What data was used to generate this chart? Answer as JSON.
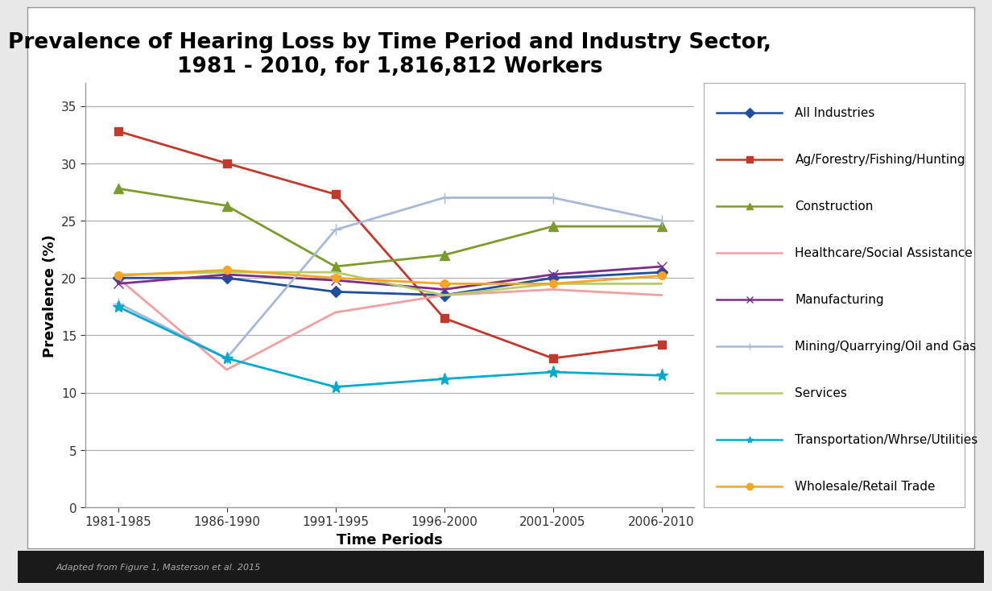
{
  "title": "Prevalence of Hearing Loss by Time Period and Industry Sector,\n1981 - 2010, for 1,816,812 Workers",
  "xlabel": "Time Periods",
  "ylabel": "Prevalence (%)",
  "time_periods": [
    "1981-1985",
    "1986-1990",
    "1991-1995",
    "1996-2000",
    "2001-2005",
    "2006-2010"
  ],
  "series": {
    "All Industries": {
      "values": [
        20.0,
        20.0,
        18.8,
        18.5,
        20.0,
        20.5
      ],
      "color": "#1F4E9B",
      "marker": "D",
      "markersize": 7,
      "linewidth": 2.0
    },
    "Ag/Forestry/Fishing/Hunting": {
      "values": [
        32.8,
        30.0,
        27.3,
        16.5,
        13.0,
        14.2
      ],
      "color": "#C0392B",
      "marker": "s",
      "markersize": 7,
      "linewidth": 2.0
    },
    "Construction": {
      "values": [
        27.8,
        26.3,
        21.0,
        22.0,
        24.5,
        24.5
      ],
      "color": "#7D9B2B",
      "marker": "^",
      "markersize": 8,
      "linewidth": 2.0
    },
    "Healthcare/Social Assistance": {
      "values": [
        20.0,
        12.0,
        17.0,
        18.5,
        19.0,
        18.5
      ],
      "color": "#F0A0A0",
      "marker": "None",
      "markersize": 0,
      "linewidth": 2.0
    },
    "Manufacturing": {
      "values": [
        19.5,
        20.3,
        19.8,
        19.0,
        20.3,
        21.0
      ],
      "color": "#7B2D8B",
      "marker": "x",
      "markersize": 9,
      "linewidth": 2.0
    },
    "Mining/Quarrying/Oil and Gas": {
      "values": [
        17.8,
        13.0,
        24.2,
        27.0,
        27.0,
        25.0
      ],
      "color": "#A8B8D8",
      "marker": "+",
      "markersize": 10,
      "linewidth": 2.0
    },
    "Services": {
      "values": [
        20.3,
        20.5,
        20.5,
        18.5,
        19.5,
        19.5
      ],
      "color": "#B5CC6A",
      "marker": "None",
      "markersize": 0,
      "linewidth": 2.0
    },
    "Transportation/Whrse/Utilities": {
      "values": [
        17.5,
        13.0,
        10.5,
        11.2,
        11.8,
        11.5
      ],
      "color": "#00AACC",
      "marker": "*",
      "markersize": 11,
      "linewidth": 2.0
    },
    "Wholesale/Retail Trade": {
      "values": [
        20.2,
        20.7,
        20.0,
        19.5,
        19.5,
        20.2
      ],
      "color": "#F5A623",
      "marker": "o",
      "markersize": 7,
      "linewidth": 2.0
    }
  },
  "ylim": [
    0,
    37
  ],
  "yticks": [
    0,
    5,
    10,
    15,
    20,
    25,
    30,
    35
  ],
  "outer_background": "#E8E8E8",
  "plot_background": "#FFFFFF",
  "grid_color": "#AAAAAA",
  "title_fontsize": 19,
  "axis_label_fontsize": 13,
  "tick_fontsize": 11,
  "legend_fontsize": 11,
  "footer_text": "Adapted from Figure 1, Masterson et al. 2015",
  "footer_bar_color": "#1A1A1A"
}
